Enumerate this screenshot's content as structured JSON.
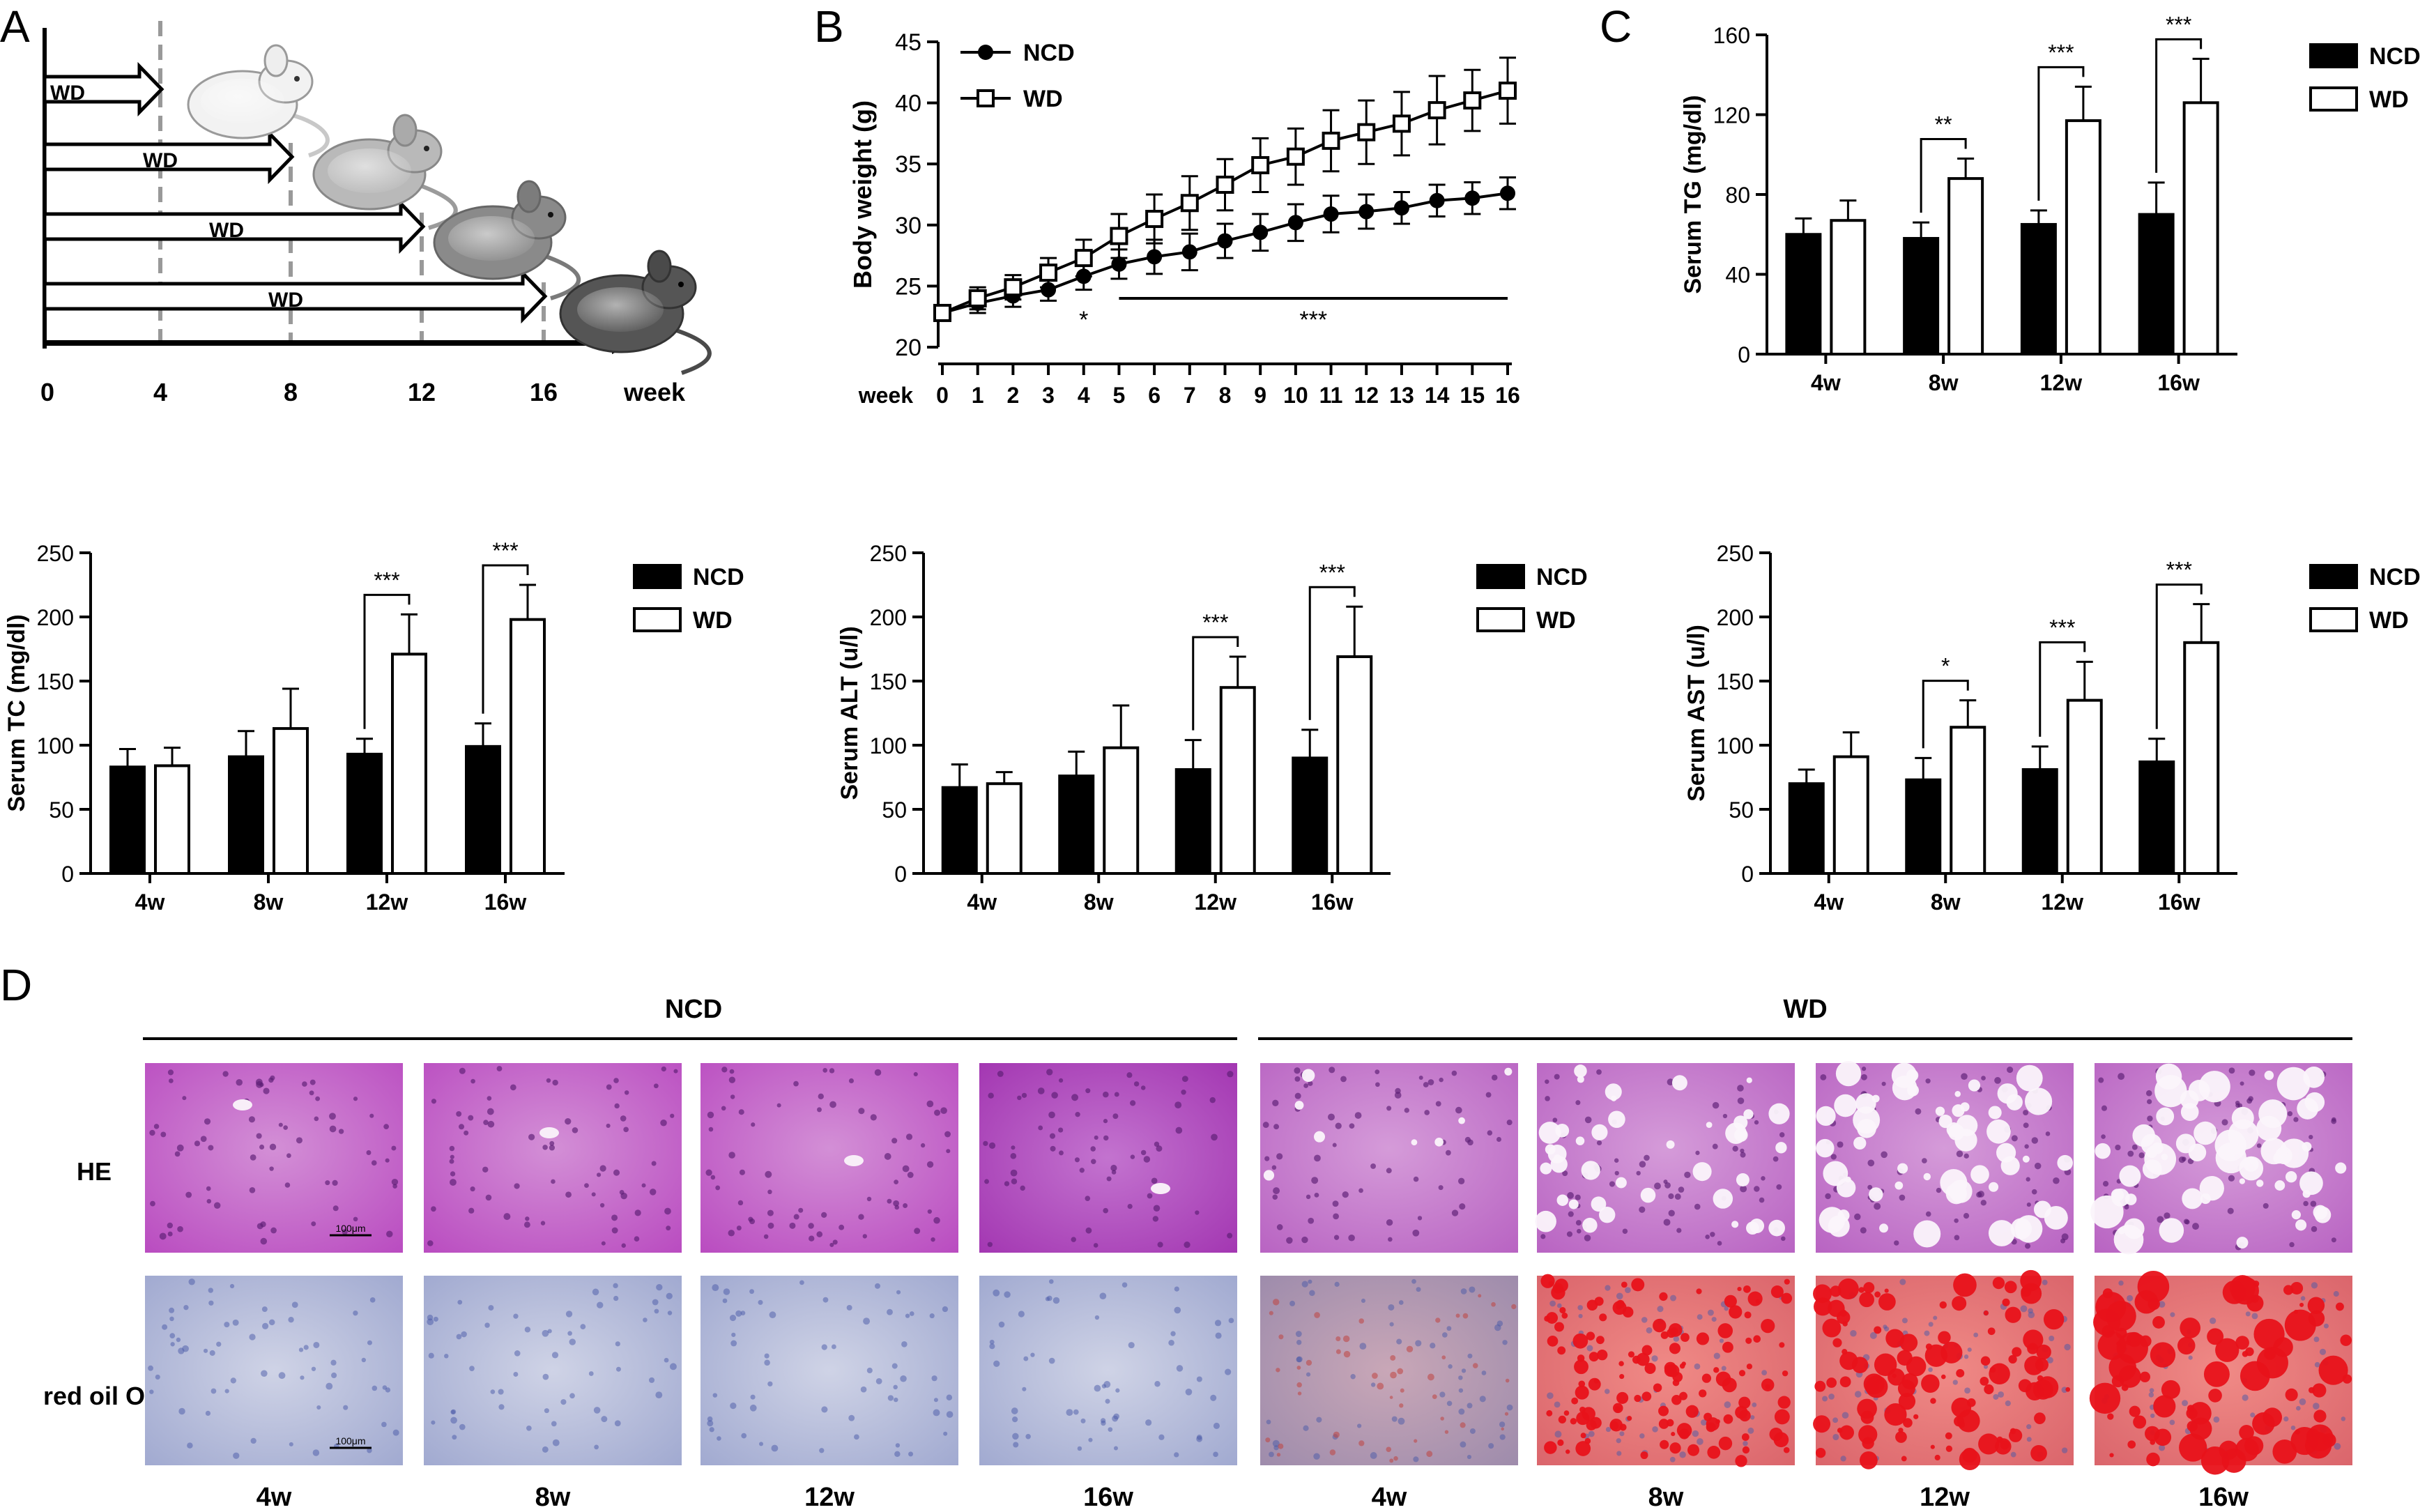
{
  "panels": {
    "A": {
      "letter": "A",
      "diet_label": "WD",
      "timeline_ticks": [
        "0",
        "4",
        "8",
        "12",
        "16"
      ],
      "timeline_unit": "week"
    },
    "B": {
      "letter": "B"
    },
    "C": {
      "letter": "C"
    },
    "D": {
      "letter": "D",
      "group_labels": [
        "NCD",
        "WD"
      ],
      "row_labels": [
        "HE",
        "red oil O"
      ],
      "column_labels": [
        "4w",
        "8w",
        "12w",
        "16w",
        "4w",
        "8w",
        "12w",
        "16w"
      ],
      "scale_bar_label": "100μm"
    }
  },
  "colors": {
    "ncd": "#000000",
    "wd": "#ffffff",
    "he_stain": "#c455c4",
    "oil_negative": "#b9bfdc",
    "oil_red": "#e8121a"
  },
  "chart_data": [
    {
      "id": "B",
      "type": "line",
      "title": "",
      "xlabel": "week",
      "ylabel": "Body weight (g)",
      "ylim": [
        20,
        45
      ],
      "yticks": [
        "20",
        "25",
        "30",
        "35",
        "40",
        "45"
      ],
      "x": [
        0,
        1,
        2,
        3,
        4,
        5,
        6,
        7,
        8,
        9,
        10,
        11,
        12,
        13,
        14,
        15,
        16
      ],
      "xtick_labels": [
        "0",
        "1",
        "2",
        "3",
        "4",
        "5",
        "6",
        "7",
        "8",
        "9",
        "10",
        "11",
        "12",
        "13",
        "14",
        "15",
        "16"
      ],
      "series": [
        {
          "name": "NCD",
          "marker": "filled-circle",
          "values": [
            22.8,
            23.6,
            24.2,
            24.7,
            25.8,
            26.8,
            27.4,
            27.8,
            28.7,
            29.4,
            30.2,
            30.9,
            31.1,
            31.4,
            32.0,
            32.2,
            32.6
          ],
          "err": [
            0.6,
            0.8,
            0.9,
            0.9,
            1.1,
            1.2,
            1.4,
            1.5,
            1.4,
            1.5,
            1.5,
            1.5,
            1.4,
            1.3,
            1.3,
            1.3,
            1.3
          ]
        },
        {
          "name": "WD",
          "marker": "open-square",
          "values": [
            22.8,
            24.0,
            24.9,
            26.1,
            27.3,
            29.1,
            30.5,
            31.8,
            33.3,
            34.9,
            35.6,
            36.9,
            37.6,
            38.3,
            39.4,
            40.2,
            41.0
          ],
          "err": [
            0.6,
            0.9,
            1.0,
            1.2,
            1.5,
            1.8,
            2.0,
            2.2,
            2.1,
            2.2,
            2.3,
            2.5,
            2.6,
            2.6,
            2.8,
            2.5,
            2.7
          ]
        }
      ],
      "annotations": [
        {
          "text": "*",
          "x": 4
        },
        {
          "text": "***",
          "x_from": 5,
          "x_to": 16
        }
      ]
    },
    {
      "id": "C",
      "type": "bar",
      "ylabel": "Serum TG (mg/dl)",
      "ylim": [
        0,
        160
      ],
      "yticks": [
        "0",
        "40",
        "80",
        "120",
        "160"
      ],
      "categories": [
        "4w",
        "8w",
        "12w",
        "16w"
      ],
      "series": [
        {
          "name": "NCD",
          "values": [
            60,
            58,
            65,
            70
          ],
          "err": [
            8,
            8,
            7,
            16
          ]
        },
        {
          "name": "WD",
          "values": [
            67,
            88,
            117,
            126
          ],
          "err": [
            10,
            10,
            17,
            22
          ]
        }
      ],
      "significance": [
        "",
        "**",
        "***",
        "***"
      ],
      "legend": "right"
    },
    {
      "id": "TC",
      "type": "bar",
      "ylabel": "Serum TC (mg/dl)",
      "ylim": [
        0,
        250
      ],
      "yticks": [
        "0",
        "50",
        "100",
        "150",
        "200",
        "250"
      ],
      "categories": [
        "4w",
        "8w",
        "12w",
        "16w"
      ],
      "series": [
        {
          "name": "NCD",
          "values": [
            83,
            91,
            93,
            99
          ],
          "err": [
            14,
            20,
            12,
            18
          ]
        },
        {
          "name": "WD",
          "values": [
            84,
            113,
            171,
            198
          ],
          "err": [
            14,
            31,
            31,
            27
          ]
        }
      ],
      "significance": [
        "",
        "",
        "***",
        "***"
      ],
      "legend": "right"
    },
    {
      "id": "ALT",
      "type": "bar",
      "ylabel": "Serum ALT (u/l)",
      "ylim": [
        0,
        250
      ],
      "yticks": [
        "0",
        "50",
        "100",
        "150",
        "200",
        "250"
      ],
      "categories": [
        "4w",
        "8w",
        "12w",
        "16w"
      ],
      "series": [
        {
          "name": "NCD",
          "values": [
            67,
            76,
            81,
            90
          ],
          "err": [
            18,
            19,
            23,
            22
          ]
        },
        {
          "name": "WD",
          "values": [
            70,
            98,
            145,
            169
          ],
          "err": [
            9,
            33,
            24,
            39
          ]
        }
      ],
      "significance": [
        "",
        "",
        "***",
        "***"
      ],
      "legend": "right"
    },
    {
      "id": "AST",
      "type": "bar",
      "ylabel": "Serum AST (u/l)",
      "ylim": [
        0,
        250
      ],
      "yticks": [
        "0",
        "50",
        "100",
        "150",
        "200",
        "250"
      ],
      "categories": [
        "4w",
        "8w",
        "12w",
        "16w"
      ],
      "series": [
        {
          "name": "NCD",
          "values": [
            70,
            73,
            81,
            87
          ],
          "err": [
            11,
            17,
            18,
            18
          ]
        },
        {
          "name": "WD",
          "values": [
            91,
            114,
            135,
            180
          ],
          "err": [
            19,
            21,
            30,
            30
          ]
        }
      ],
      "significance": [
        "",
        "*",
        "***",
        "***"
      ],
      "legend": "right"
    }
  ]
}
